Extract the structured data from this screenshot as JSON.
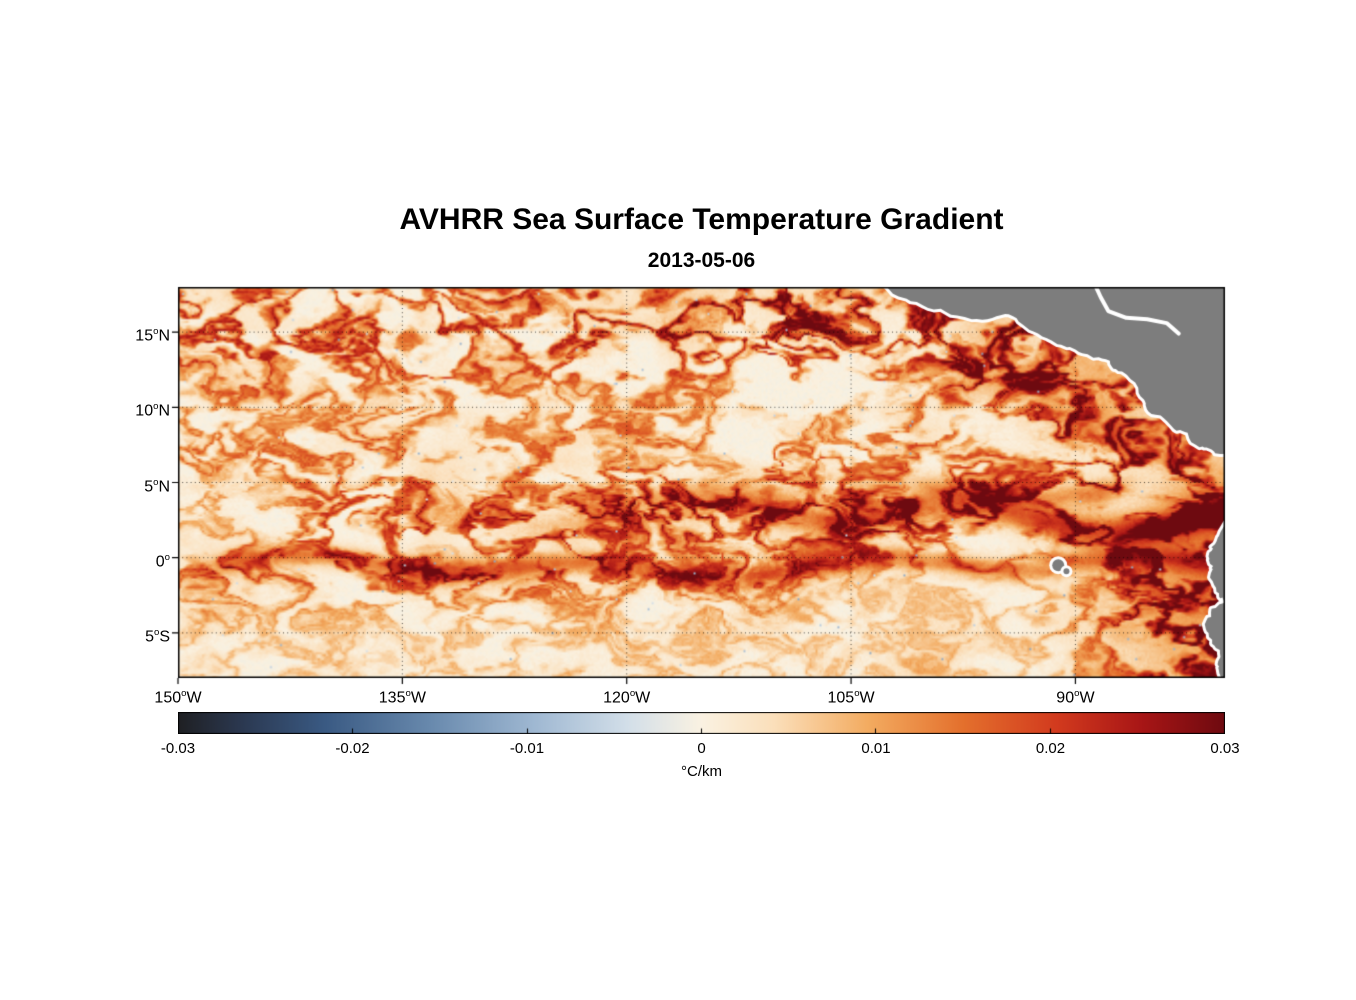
{
  "figure": {
    "background": "#ffffff"
  },
  "chart_data": {
    "type": "heatmap",
    "title": "AVHRR Sea Surface Temperature Gradient",
    "subtitle": "2013-05-06",
    "lon_range": [
      -150,
      -80
    ],
    "lat_range": [
      -8,
      18
    ],
    "x_ticks": [
      {
        "lon": -150,
        "label": "150°W"
      },
      {
        "lon": -135,
        "label": "135°W"
      },
      {
        "lon": -120,
        "label": "120°W"
      },
      {
        "lon": -105,
        "label": "105°W"
      },
      {
        "lon": -90,
        "label": "90°W"
      }
    ],
    "y_ticks": [
      {
        "lat": 15,
        "label": "15°N"
      },
      {
        "lat": 10,
        "label": "10°N"
      },
      {
        "lat": 5,
        "label": "5°N"
      },
      {
        "lat": 0,
        "label": "0°"
      },
      {
        "lat": -5,
        "label": "5°S"
      }
    ],
    "grid": "dotted",
    "land_color": "#7d7d7d",
    "coast_halo": "#ffffff",
    "colorbar": {
      "label": "°C/km",
      "min": -0.03,
      "max": 0.03,
      "ticks": [
        {
          "v": -0.03,
          "label": "-0.03"
        },
        {
          "v": -0.02,
          "label": "-0.02"
        },
        {
          "v": -0.01,
          "label": "-0.01"
        },
        {
          "v": 0,
          "label": "0"
        },
        {
          "v": 0.01,
          "label": "0.01"
        },
        {
          "v": 0.02,
          "label": "0.02"
        },
        {
          "v": 0.03,
          "label": "0.03"
        }
      ],
      "stops": [
        {
          "t": 0.0,
          "c": "#1f2023"
        },
        {
          "t": 0.06,
          "c": "#2b3850"
        },
        {
          "t": 0.14,
          "c": "#3a5a83"
        },
        {
          "t": 0.24,
          "c": "#6889ad"
        },
        {
          "t": 0.34,
          "c": "#9fb8d2"
        },
        {
          "t": 0.43,
          "c": "#d3dfe9"
        },
        {
          "t": 0.5,
          "c": "#faf2e2"
        },
        {
          "t": 0.57,
          "c": "#fbdfba"
        },
        {
          "t": 0.66,
          "c": "#f3ab60"
        },
        {
          "t": 0.75,
          "c": "#e4702d"
        },
        {
          "t": 0.84,
          "c": "#d23a1e"
        },
        {
          "t": 0.92,
          "c": "#a81616"
        },
        {
          "t": 1.0,
          "c": "#6e0a10"
        }
      ]
    },
    "land_polygons": [
      {
        "name": "central-america-mexico",
        "points": [
          [
            -103.6,
            18.8
          ],
          [
            -102.2,
            17.55
          ],
          [
            -100.6,
            17.0
          ],
          [
            -99.0,
            16.55
          ],
          [
            -97.4,
            16.0
          ],
          [
            -95.9,
            15.85
          ],
          [
            -94.7,
            16.2
          ],
          [
            -93.8,
            15.7
          ],
          [
            -92.5,
            14.9
          ],
          [
            -91.2,
            14.2
          ],
          [
            -90.0,
            13.85
          ],
          [
            -88.8,
            13.3
          ],
          [
            -87.7,
            13.1
          ],
          [
            -87.3,
            12.55
          ],
          [
            -86.5,
            12.1
          ],
          [
            -85.8,
            11.3
          ],
          [
            -85.35,
            10.4
          ],
          [
            -85.1,
            9.7
          ],
          [
            -84.3,
            9.45
          ],
          [
            -83.4,
            8.55
          ],
          [
            -82.5,
            8.3
          ],
          [
            -81.7,
            7.35
          ],
          [
            -80.9,
            7.2
          ],
          [
            -80.1,
            6.9
          ],
          [
            -79.3,
            7.2
          ],
          [
            -76.5,
            7.5
          ],
          [
            -76.5,
            19.5
          ]
        ]
      },
      {
        "name": "south-america",
        "points": [
          [
            -79.6,
            2.6
          ],
          [
            -80.4,
            1.45
          ],
          [
            -80.9,
            0.7
          ],
          [
            -81.1,
            0.1
          ],
          [
            -80.8,
            -0.55
          ],
          [
            -81.0,
            -1.3
          ],
          [
            -80.6,
            -2.0
          ],
          [
            -80.3,
            -2.7
          ],
          [
            -80.0,
            -3.0
          ],
          [
            -80.9,
            -3.4
          ],
          [
            -81.25,
            -4.2
          ],
          [
            -81.1,
            -5.0
          ],
          [
            -80.7,
            -5.85
          ],
          [
            -80.3,
            -6.6
          ],
          [
            -80.45,
            -7.3
          ],
          [
            -80.0,
            -8.4
          ],
          [
            -76.0,
            -9.0
          ],
          [
            -76.0,
            2.6
          ]
        ]
      }
    ],
    "coast_lines": [
      {
        "name": "caribbean-honduras-coast",
        "points": [
          [
            -88.9,
            18.6
          ],
          [
            -88.3,
            17.3
          ],
          [
            -87.8,
            16.4
          ],
          [
            -86.6,
            15.95
          ],
          [
            -85.2,
            15.85
          ],
          [
            -83.9,
            15.6
          ],
          [
            -83.1,
            14.9
          ]
        ]
      }
    ],
    "islands": [
      {
        "name": "galapagos",
        "lon": -91.15,
        "lat": -0.5,
        "r_deg": 0.4
      },
      {
        "name": "galapagos-south",
        "lon": -90.6,
        "lat": -0.9,
        "r_deg": 0.2
      }
    ],
    "field": {
      "background_amplitude": 0.27,
      "texture_scale_deg": [
        3.3,
        1.9
      ],
      "bands": [
        {
          "name": "north-tropical-activity",
          "lat": 15.0,
          "sigma": 3.2,
          "amp": 0.55,
          "lon_min": -150,
          "lon_max": -93
        },
        {
          "name": "itcz-filaments",
          "lat": 6.5,
          "sigma": 2.0,
          "amp": 0.28,
          "lon_min": -150,
          "lon_max": -85
        },
        {
          "name": "equatorial-band",
          "lat": 2.6,
          "sigma": 1.7,
          "amp": 0.38,
          "lon_min": -140,
          "lon_max": -80,
          "east_boost": 0.5
        },
        {
          "name": "equator-diffuse",
          "lat": -1.2,
          "sigma": 1.6,
          "amp": 0.3,
          "lon_min": -150,
          "lon_max": -110
        }
      ],
      "fronts": [
        {
          "name": "tiw-front-north",
          "base_lat": 2.9,
          "meander": 0.8,
          "sigma": 0.75,
          "amp_west": 0.1,
          "amp_east": 0.95,
          "lon_start": -134,
          "lon_end": -76,
          "phase": 2.1
        },
        {
          "name": "tiw-front-secondary",
          "base_lat": 4.6,
          "meander": 0.6,
          "sigma": 0.6,
          "amp_west": 0.0,
          "amp_east": 0.5,
          "lon_start": -115,
          "lon_end": -85,
          "phase": 3.3
        },
        {
          "name": "equatorial-front",
          "base_lat": -0.6,
          "meander": 0.55,
          "sigma": 0.55,
          "amp_west": 0.5,
          "amp_east": 0.45,
          "lon_start": -150,
          "lon_end": -76,
          "phase": 4.4
        }
      ],
      "coastal_hotspots": [
        {
          "name": "tehuantepec",
          "lon": -95.5,
          "lat": 14.8,
          "sx": 2.5,
          "sy": 2.2,
          "amp": 0.55
        },
        {
          "name": "papagayo",
          "lon": -88.5,
          "lat": 10.5,
          "sx": 3.5,
          "sy": 3.0,
          "amp": 0.5
        },
        {
          "name": "panama-bight",
          "lon": -80.5,
          "lat": 3.0,
          "sx": 3.0,
          "sy": 3.5,
          "amp": 0.75
        },
        {
          "name": "peru-ecuador-upwelling",
          "lon": -82.0,
          "lat": -4.0,
          "sx": 4.0,
          "sy": 5.0,
          "amp": 0.85
        },
        {
          "name": "mexico-coast",
          "lon": -108.0,
          "lat": 17.5,
          "sx": 4.0,
          "sy": 2.0,
          "amp": 0.35
        }
      ]
    }
  }
}
